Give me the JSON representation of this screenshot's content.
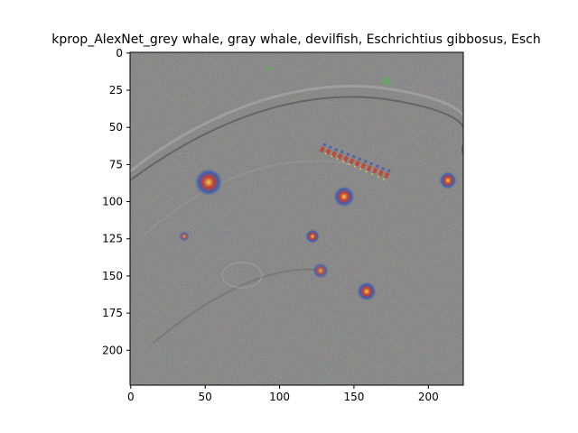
{
  "title": "kprop_AlexNet_grey whale, gray whale, devilfish, Eschrichtius gibbosus, Esch",
  "image": {
    "description": "Guided backpropagation saliency map: mid-grey background with colorful speckled edge responses outlining a curved whale body and several spots",
    "palette": {
      "background": "#7c7c7c",
      "edge_light": "#a6a6a6",
      "edge_dark": "#4e4e4e",
      "accent_red": "#c8402c",
      "accent_blue": "#3a5fb8",
      "accent_yellow": "#e2c24a",
      "accent_green": "#5fae5a"
    }
  },
  "axes": {
    "xlim": [
      0,
      223
    ],
    "ylim": [
      0,
      223
    ],
    "x_ticks": [
      0,
      50,
      100,
      150,
      200
    ],
    "y_ticks": [
      0,
      25,
      50,
      75,
      100,
      125,
      150,
      175,
      200
    ]
  }
}
